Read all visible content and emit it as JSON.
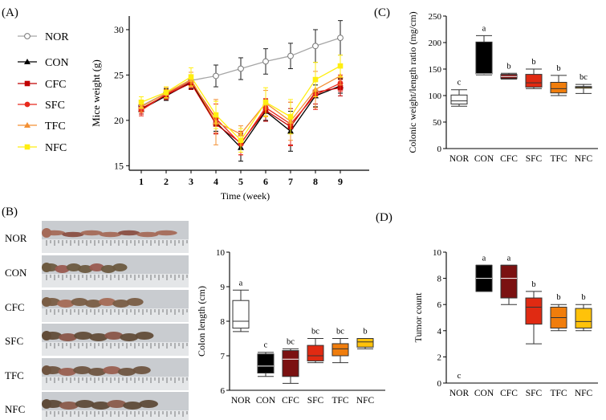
{
  "panels": {
    "a": "(A)",
    "b": "(B)",
    "c": "(C)",
    "d": "(D)"
  },
  "groups": [
    "NOR",
    "CON",
    "CFC",
    "SFC",
    "TFC",
    "NFC"
  ],
  "colors": {
    "NOR": "#a6a6a6",
    "CON": "#000000",
    "CFC": "#c00000",
    "SFC": "#e8291c",
    "TFC": "#f39034",
    "NFC": "#ffee10",
    "NOR_box": "#ffffff",
    "CON_box": "#000000",
    "CFC_box": "#7b1111",
    "SFC_box": "#e02a12",
    "TFC_box": "#f07d0c",
    "NFC_box": "#ffc20a"
  },
  "photo_rows": [
    "NOR",
    "CON",
    "CFC",
    "SFC",
    "TFC",
    "NFC"
  ],
  "chart_data": [
    {
      "id": "weight",
      "type": "line",
      "title": "",
      "xlabel": "Time (week)",
      "ylabel": "Mice weight (g)",
      "x": [
        1,
        2,
        3,
        4,
        5,
        6,
        7,
        8,
        9
      ],
      "ylim": [
        14.5,
        31.5
      ],
      "yticks": [
        15,
        20,
        25,
        30
      ],
      "series": [
        {
          "name": "NOR",
          "values": [
            21.6,
            23.0,
            24.4,
            24.9,
            25.7,
            26.5,
            27.1,
            28.2,
            29.1
          ],
          "errors": [
            0.5,
            0.5,
            0.6,
            1.2,
            1.2,
            1.4,
            1.4,
            1.8,
            1.9
          ]
        },
        {
          "name": "CON",
          "values": [
            21.2,
            22.7,
            24.2,
            19.8,
            17.0,
            21.0,
            18.8,
            22.7,
            23.8
          ],
          "errors": [
            0.5,
            0.5,
            0.7,
            1.0,
            1.5,
            1.0,
            2.2,
            1.2,
            0.8
          ]
        },
        {
          "name": "CFC",
          "values": [
            21.3,
            22.8,
            24.1,
            19.6,
            17.5,
            21.1,
            19.3,
            23.1,
            23.6
          ],
          "errors": [
            0.6,
            0.5,
            0.7,
            1.1,
            1.3,
            1.2,
            2.0,
            1.3,
            0.9
          ]
        },
        {
          "name": "SFC",
          "values": [
            21.1,
            22.9,
            24.3,
            20.2,
            17.4,
            21.4,
            19.6,
            22.8,
            24.1
          ],
          "errors": [
            0.6,
            0.5,
            0.7,
            1.6,
            1.2,
            1.0,
            2.4,
            1.6,
            0.9
          ]
        },
        {
          "name": "TFC",
          "values": [
            21.5,
            23.0,
            24.5,
            19.8,
            18.5,
            21.9,
            19.9,
            23.4,
            24.9
          ],
          "errors": [
            0.6,
            0.6,
            0.8,
            2.5,
            0.9,
            1.4,
            2.1,
            2.0,
            1.0
          ]
        },
        {
          "name": "NFC",
          "values": [
            22.0,
            23.1,
            24.8,
            20.6,
            17.8,
            22.0,
            20.4,
            24.5,
            26.0
          ],
          "errors": [
            0.6,
            0.6,
            1.0,
            1.5,
            1.3,
            1.6,
            1.9,
            1.9,
            1.2
          ]
        }
      ]
    },
    {
      "id": "ratio",
      "type": "box",
      "title": "",
      "xlabel": "",
      "ylabel": "Colonic weight/length ratio (mg/cm)",
      "categories": [
        "NOR",
        "CON",
        "CFC",
        "SFC",
        "TFC",
        "NFC"
      ],
      "ylim": [
        0,
        250
      ],
      "yticks": [
        0,
        50,
        100,
        150,
        200,
        250
      ],
      "boxes": [
        {
          "min": 80,
          "q1": 84,
          "median": 90,
          "q3": 101,
          "max": 111
        },
        {
          "min": 139,
          "q1": 141,
          "median": 141,
          "q3": 201,
          "max": 213
        },
        {
          "min": 131,
          "q1": 132,
          "median": 136,
          "q3": 140,
          "max": 142
        },
        {
          "min": 113,
          "q1": 116,
          "median": 124,
          "q3": 140,
          "max": 150
        },
        {
          "min": 100,
          "q1": 105,
          "median": 113,
          "q3": 125,
          "max": 138
        },
        {
          "min": 104,
          "q1": 114,
          "median": 116,
          "q3": 117,
          "max": 121
        }
      ],
      "labels": [
        "c",
        "a",
        "b",
        "b",
        "b",
        "bc"
      ]
    },
    {
      "id": "length",
      "type": "box",
      "title": "",
      "xlabel": "",
      "ylabel": "Colon length (cm)",
      "categories": [
        "NOR",
        "CON",
        "CFC",
        "SFC",
        "TFC",
        "NFC"
      ],
      "ylim": [
        6,
        10
      ],
      "yticks": [
        6,
        7,
        8,
        9,
        10
      ],
      "boxes": [
        {
          "min": 7.7,
          "q1": 7.8,
          "median": 8.0,
          "q3": 8.6,
          "max": 8.9
        },
        {
          "min": 6.4,
          "q1": 6.5,
          "median": 6.7,
          "q3": 7.05,
          "max": 7.1
        },
        {
          "min": 6.2,
          "q1": 6.4,
          "median": 6.9,
          "q3": 7.15,
          "max": 7.2
        },
        {
          "min": 6.8,
          "q1": 6.85,
          "median": 7.0,
          "q3": 7.3,
          "max": 7.5
        },
        {
          "min": 6.8,
          "q1": 7.0,
          "median": 7.2,
          "q3": 7.35,
          "max": 7.5
        },
        {
          "min": 7.2,
          "q1": 7.25,
          "median": 7.4,
          "q3": 7.5,
          "max": 7.5
        }
      ],
      "labels": [
        "a",
        "c",
        "bc",
        "bc",
        "bc",
        "b"
      ]
    },
    {
      "id": "tumor",
      "type": "box",
      "title": "",
      "xlabel": "",
      "ylabel": "Tumor count",
      "categories": [
        "NOR",
        "CON",
        "CFC",
        "SFC",
        "TFC",
        "NFC"
      ],
      "ylim": [
        0,
        10
      ],
      "yticks": [
        0,
        2,
        4,
        6,
        8,
        10
      ],
      "boxes": [
        {
          "min": 0,
          "q1": 0,
          "median": 0,
          "q3": 0,
          "max": 0
        },
        {
          "min": 7,
          "q1": 7,
          "median": 8,
          "q3": 9,
          "max": 9
        },
        {
          "min": 6,
          "q1": 6.5,
          "median": 8,
          "q3": 9,
          "max": 9
        },
        {
          "min": 3,
          "q1": 4.5,
          "median": 5.8,
          "q3": 6.5,
          "max": 7
        },
        {
          "min": 4,
          "q1": 4.2,
          "median": 5,
          "q3": 5.8,
          "max": 6
        },
        {
          "min": 4,
          "q1": 4.2,
          "median": 4.7,
          "q3": 5.7,
          "max": 6
        }
      ],
      "labels": [
        "c",
        "a",
        "a",
        "b",
        "b",
        "b"
      ]
    }
  ]
}
